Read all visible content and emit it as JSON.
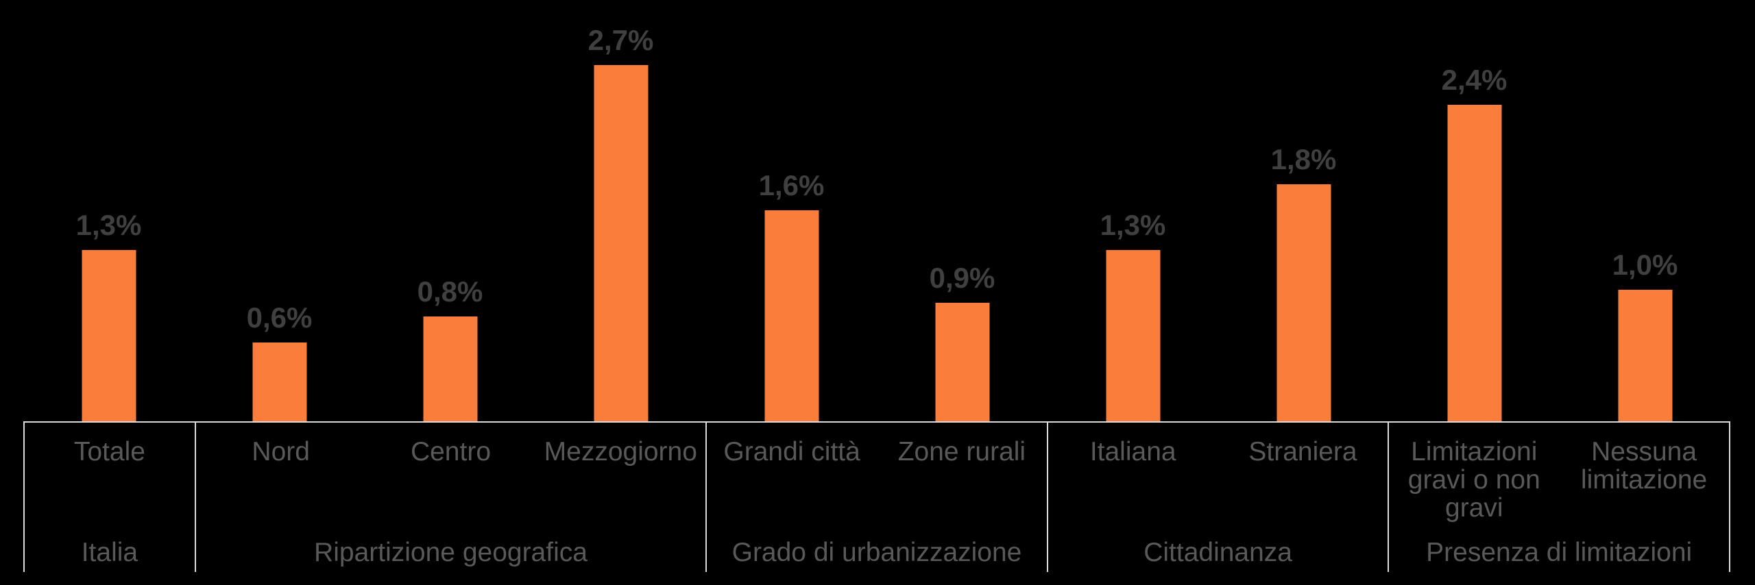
{
  "chart_data": {
    "type": "bar",
    "title": "",
    "unit": "%",
    "ylim": [
      0,
      3.2
    ],
    "grid": false,
    "legend": false,
    "bar_color": "#FA7D3C",
    "value_label_color": "#404040",
    "axis_label_color": "#595959",
    "axis_line_color": "#DCDCDC",
    "background_color": "#000000",
    "groups": [
      {
        "label": "Italia",
        "categories": [
          "Totale"
        ],
        "values": [
          1.3
        ],
        "value_labels": [
          "1,3%"
        ]
      },
      {
        "label": "Ripartizione geografica",
        "categories": [
          "Nord",
          "Centro",
          "Mezzogiorno"
        ],
        "values": [
          0.6,
          0.8,
          2.7
        ],
        "value_labels": [
          "0,6%",
          "0,8%",
          "2,7%"
        ]
      },
      {
        "label": "Grado di urbanizzazione",
        "categories": [
          "Grandi città",
          "Zone rurali"
        ],
        "values": [
          1.6,
          0.9
        ],
        "value_labels": [
          "1,6%",
          "0,9%"
        ]
      },
      {
        "label": "Cittadinanza",
        "categories": [
          "Italiana",
          "Straniera"
        ],
        "values": [
          1.3,
          1.8
        ],
        "value_labels": [
          "1,3%",
          "1,8%"
        ]
      },
      {
        "label": "Presenza di limitazioni",
        "categories": [
          "Limitazioni\ngravi o non\ngravi",
          "Nessuna\nlimitazione"
        ],
        "values": [
          2.4,
          1.0
        ],
        "value_labels": [
          "2,4%",
          "1,0%"
        ]
      }
    ]
  }
}
